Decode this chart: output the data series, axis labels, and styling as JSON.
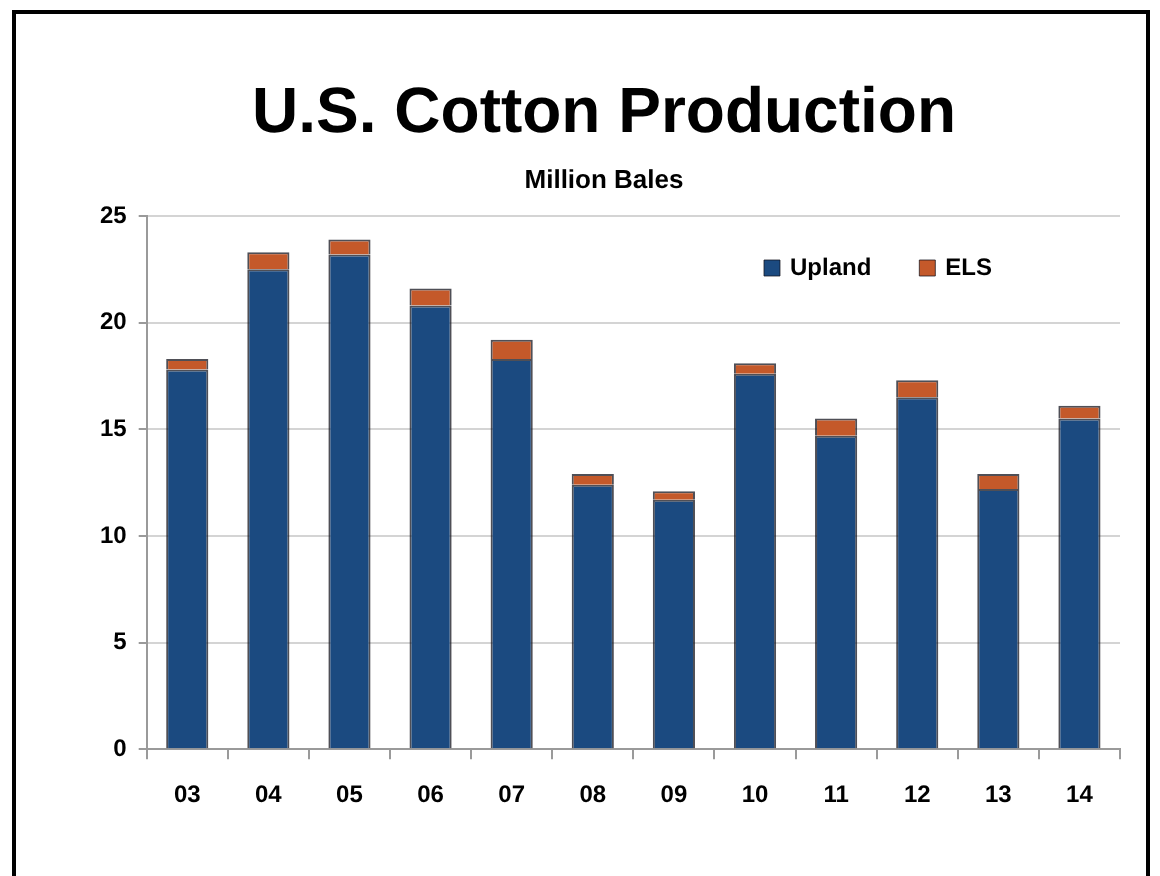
{
  "chart_data": {
    "type": "bar",
    "title": "U.S. Cotton Production",
    "subtitle": "Million Bales",
    "categories": [
      "03",
      "04",
      "05",
      "06",
      "07",
      "08",
      "09",
      "10",
      "11",
      "12",
      "13",
      "14"
    ],
    "stacked": true,
    "series": [
      {
        "name": "Upland",
        "color": "#1b4a80",
        "values": [
          17.8,
          22.5,
          23.2,
          20.8,
          18.3,
          12.4,
          11.7,
          17.6,
          14.7,
          16.5,
          12.2,
          15.5
        ]
      },
      {
        "name": "ELS",
        "color": "#c4592a",
        "values": [
          0.5,
          0.8,
          0.7,
          0.8,
          0.9,
          0.5,
          0.4,
          0.5,
          0.8,
          0.8,
          0.7,
          0.6
        ]
      }
    ],
    "ylim": [
      0,
      25
    ],
    "yticks": [
      0,
      5,
      10,
      15,
      20,
      25
    ],
    "grid": "y",
    "legend": "top right"
  }
}
